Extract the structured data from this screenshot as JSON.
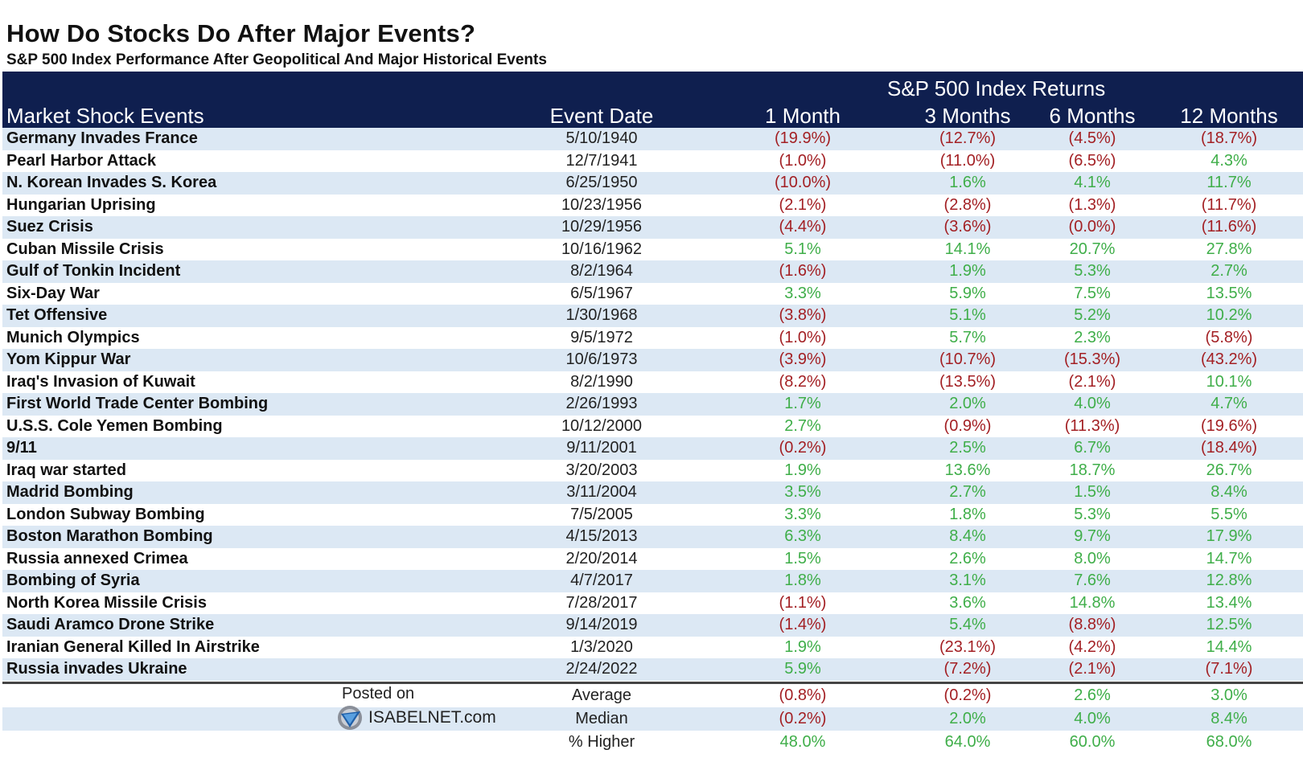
{
  "title": "How Do Stocks Do After Major Events?",
  "subtitle": "S&P 500 Index Performance After Geopolitical And Major Historical Events",
  "header": {
    "group": "S&P 500 Index Returns",
    "event_col": "Market Shock Events",
    "date_col": "Event Date",
    "periods": [
      "1 Month",
      "3 Months",
      "6 Months",
      "12 Months"
    ]
  },
  "colors": {
    "header_bg": "#0f1f4f",
    "band": "#dce8f4",
    "negative": "#a32024",
    "positive": "#3fae49"
  },
  "chart_data": {
    "type": "table",
    "title": "How Do Stocks Do After Major Events?",
    "columns": [
      "Market Shock Events",
      "Event Date",
      "1 Month",
      "3 Months",
      "6 Months",
      "12 Months"
    ],
    "rows": [
      {
        "event": "Germany Invades France",
        "date": "5/10/1940",
        "m1": "(19.9%)",
        "m3": "(12.7%)",
        "m6": "(4.5%)",
        "m12": "(18.7%)"
      },
      {
        "event": "Pearl Harbor Attack",
        "date": "12/7/1941",
        "m1": "(1.0%)",
        "m3": "(11.0%)",
        "m6": "(6.5%)",
        "m12": "4.3%"
      },
      {
        "event": "N. Korean Invades S. Korea",
        "date": "6/25/1950",
        "m1": "(10.0%)",
        "m3": "1.6%",
        "m6": "4.1%",
        "m12": "11.7%"
      },
      {
        "event": "Hungarian Uprising",
        "date": "10/23/1956",
        "m1": "(2.1%)",
        "m3": "(2.8%)",
        "m6": "(1.3%)",
        "m12": "(11.7%)"
      },
      {
        "event": "Suez Crisis",
        "date": "10/29/1956",
        "m1": "(4.4%)",
        "m3": "(3.6%)",
        "m6": "(0.0%)",
        "m12": "(11.6%)"
      },
      {
        "event": "Cuban Missile Crisis",
        "date": "10/16/1962",
        "m1": "5.1%",
        "m3": "14.1%",
        "m6": "20.7%",
        "m12": "27.8%"
      },
      {
        "event": "Gulf of Tonkin Incident",
        "date": "8/2/1964",
        "m1": "(1.6%)",
        "m3": "1.9%",
        "m6": "5.3%",
        "m12": "2.7%"
      },
      {
        "event": "Six-Day War",
        "date": "6/5/1967",
        "m1": "3.3%",
        "m3": "5.9%",
        "m6": "7.5%",
        "m12": "13.5%"
      },
      {
        "event": "Tet Offensive",
        "date": "1/30/1968",
        "m1": "(3.8%)",
        "m3": "5.1%",
        "m6": "5.2%",
        "m12": "10.2%"
      },
      {
        "event": "Munich Olympics",
        "date": "9/5/1972",
        "m1": "(1.0%)",
        "m3": "5.7%",
        "m6": "2.3%",
        "m12": "(5.8%)"
      },
      {
        "event": "Yom Kippur War",
        "date": "10/6/1973",
        "m1": "(3.9%)",
        "m3": "(10.7%)",
        "m6": "(15.3%)",
        "m12": "(43.2%)"
      },
      {
        "event": "Iraq's Invasion of Kuwait",
        "date": "8/2/1990",
        "m1": "(8.2%)",
        "m3": "(13.5%)",
        "m6": "(2.1%)",
        "m12": "10.1%"
      },
      {
        "event": "First World Trade Center Bombing",
        "date": "2/26/1993",
        "m1": "1.7%",
        "m3": "2.0%",
        "m6": "4.0%",
        "m12": "4.7%"
      },
      {
        "event": "U.S.S. Cole Yemen Bombing",
        "date": "10/12/2000",
        "m1": "2.7%",
        "m3": "(0.9%)",
        "m6": "(11.3%)",
        "m12": "(19.6%)"
      },
      {
        "event": "9/11",
        "date": "9/11/2001",
        "m1": "(0.2%)",
        "m3": "2.5%",
        "m6": "6.7%",
        "m12": "(18.4%)"
      },
      {
        "event": "Iraq war started",
        "date": "3/20/2003",
        "m1": "1.9%",
        "m3": "13.6%",
        "m6": "18.7%",
        "m12": "26.7%"
      },
      {
        "event": "Madrid Bombing",
        "date": "3/11/2004",
        "m1": "3.5%",
        "m3": "2.7%",
        "m6": "1.5%",
        "m12": "8.4%"
      },
      {
        "event": "London Subway Bombing",
        "date": "7/5/2005",
        "m1": "3.3%",
        "m3": "1.8%",
        "m6": "5.3%",
        "m12": "5.5%"
      },
      {
        "event": "Boston Marathon Bombing",
        "date": "4/15/2013",
        "m1": "6.3%",
        "m3": "8.4%",
        "m6": "9.7%",
        "m12": "17.9%"
      },
      {
        "event": "Russia annexed Crimea",
        "date": "2/20/2014",
        "m1": "1.5%",
        "m3": "2.6%",
        "m6": "8.0%",
        "m12": "14.7%"
      },
      {
        "event": "Bombing of Syria",
        "date": "4/7/2017",
        "m1": "1.8%",
        "m3": "3.1%",
        "m6": "7.6%",
        "m12": "12.8%"
      },
      {
        "event": "North Korea Missile Crisis",
        "date": "7/28/2017",
        "m1": "(1.1%)",
        "m3": "3.6%",
        "m6": "14.8%",
        "m12": "13.4%"
      },
      {
        "event": "Saudi Aramco Drone Strike",
        "date": "9/14/2019",
        "m1": "(1.4%)",
        "m3": "5.4%",
        "m6": "(8.8%)",
        "m12": "12.5%"
      },
      {
        "event": "Iranian General Killed In Airstrike",
        "date": "1/3/2020",
        "m1": "1.9%",
        "m3": "(23.1%)",
        "m6": "(4.2%)",
        "m12": "14.4%"
      },
      {
        "event": "Russia invades Ukraine",
        "date": "2/24/2022",
        "m1": "5.9%",
        "m3": "(7.2%)",
        "m6": "(2.1%)",
        "m12": "(7.1%)"
      }
    ],
    "summary": [
      {
        "label": "Average",
        "m1": "(0.8%)",
        "m3": "(0.2%)",
        "m6": "2.6%",
        "m12": "3.0%"
      },
      {
        "label": "Median",
        "m1": "(0.2%)",
        "m3": "2.0%",
        "m6": "4.0%",
        "m12": "8.4%"
      },
      {
        "label": "% Higher",
        "m1": "48.0%",
        "m3": "64.0%",
        "m6": "60.0%",
        "m12": "68.0%"
      }
    ]
  },
  "footer": {
    "posted_on": "Posted on",
    "brand": "ISABELNET.com",
    "brand_icon": "isabelnet-logo-icon"
  }
}
